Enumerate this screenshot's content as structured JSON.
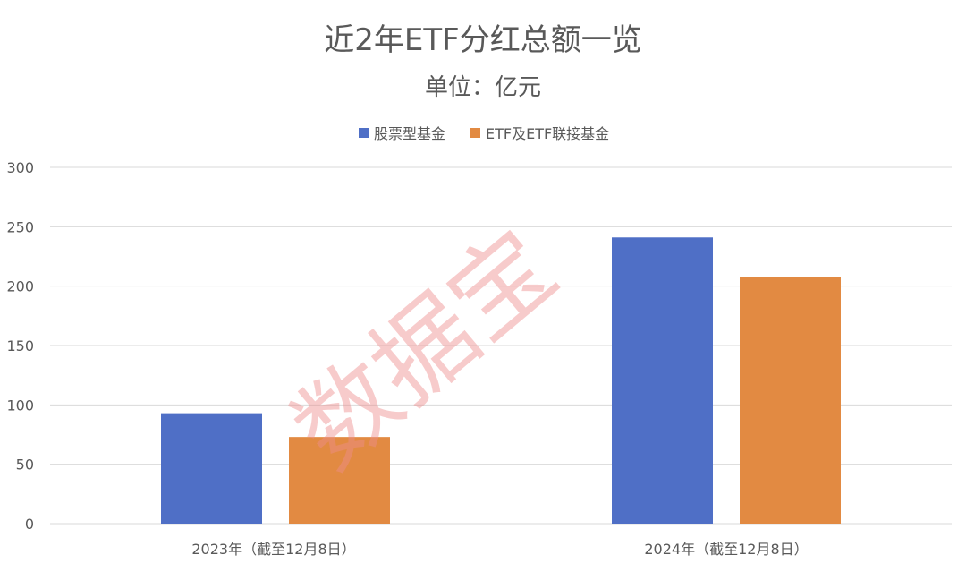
{
  "chart_data": {
    "type": "bar",
    "title": "近2年ETF分红总额一览",
    "subtitle": "单位：亿元",
    "categories": [
      "2023年（截至12月8日）",
      "2024年（截至12月8日）"
    ],
    "series": [
      {
        "name": "股票型基金",
        "values": [
          93,
          241
        ],
        "color": "#4f6fc6"
      },
      {
        "name": "ETF及ETF联接基金",
        "values": [
          73,
          208
        ],
        "color": "#e28a42"
      }
    ],
    "ylim": [
      0,
      300
    ],
    "yticks": [
      0,
      50,
      100,
      150,
      200,
      250,
      300
    ],
    "grid": true,
    "legend_position": "top-center"
  },
  "watermark": "数据宝"
}
